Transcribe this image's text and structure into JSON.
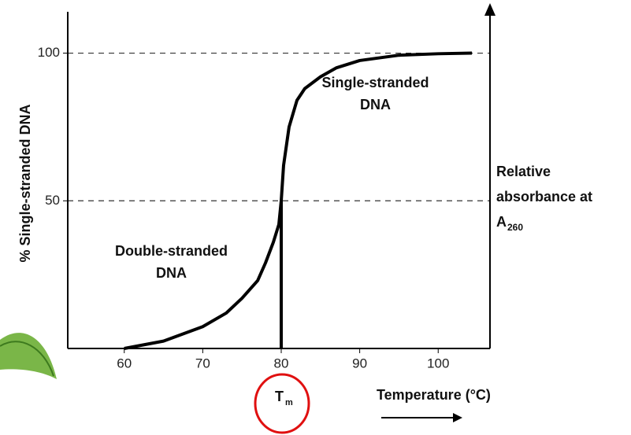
{
  "chart_data": {
    "type": "line",
    "y_label": "% Single-stranded DNA",
    "x_label": "Temperature (°C)",
    "right_label": [
      "Relative",
      "absorbance at",
      "A",
      "260"
    ],
    "tm_label": [
      "T",
      "m"
    ],
    "annotations": [
      {
        "lines": [
          "Single-stranded",
          "DNA"
        ],
        "x": 92,
        "y": 86
      },
      {
        "lines": [
          "Double-stranded",
          "DNA"
        ],
        "x": 66,
        "y": 29
      }
    ],
    "x": [
      60,
      65,
      70,
      73,
      75,
      77,
      78,
      79,
      79.7,
      80,
      80.3,
      81,
      82,
      83,
      85,
      87,
      90,
      95,
      100,
      104.3
    ],
    "series": [
      {
        "color": "#000000",
        "values": [
          0,
          2.5,
          7.4,
          12,
          17,
          23,
          29,
          36,
          42,
          50,
          62,
          75,
          84,
          88,
          92,
          95,
          97.5,
          99.3,
          99.8,
          100
        ]
      }
    ],
    "tm_line": {
      "x": 80,
      "y": 50
    },
    "xlim": [
      52.8,
      106.6
    ],
    "ylim": [
      0,
      114
    ],
    "xticks": [
      60,
      70,
      80,
      90,
      100
    ],
    "yticks": [
      50,
      100
    ],
    "grid": true
  }
}
